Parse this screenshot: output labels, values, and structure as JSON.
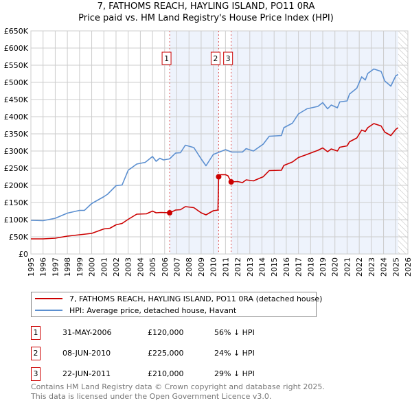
{
  "header": {
    "title_line1": "7, FATHOMS REACH, HAYLING ISLAND, PO11 0RA",
    "title_line2": "Price paid vs. HM Land Registry's House Price Index (HPI)"
  },
  "legend": {
    "property": "7, FATHOMS REACH, HAYLING ISLAND, PO11 0RA (detached house)",
    "hpi": "HPI: Average price, detached house, Havant"
  },
  "sales": [
    {
      "num": "1",
      "date": "31-MAY-2006",
      "price": "£120,000",
      "delta": "56% ↓ HPI",
      "year": 2006.41,
      "value": 120
    },
    {
      "num": "2",
      "date": "08-JUN-2010",
      "price": "£225,000",
      "delta": "24% ↓ HPI",
      "year": 2010.44,
      "value": 225
    },
    {
      "num": "3",
      "date": "22-JUN-2011",
      "price": "£210,000",
      "delta": "29% ↓ HPI",
      "year": 2011.47,
      "value": 210
    }
  ],
  "footer": {
    "line1": "Contains HM Land Registry data © Crown copyright and database right 2025.",
    "line2": "This data is licensed under the Open Government Licence v3.0."
  },
  "chart_data": {
    "type": "line",
    "title": "7, FATHOMS REACH, HAYLING ISLAND, PO11 0RA — Price paid vs. HM Land Registry's House Price Index (HPI)",
    "xlim": [
      1995,
      2026
    ],
    "ylim": [
      0,
      650
    ],
    "y_unit": "£K",
    "xticks": [
      "1995",
      "1996",
      "1997",
      "1998",
      "1999",
      "2000",
      "2001",
      "2002",
      "2003",
      "2004",
      "2005",
      "2006",
      "2007",
      "2008",
      "2009",
      "2010",
      "2011",
      "2012",
      "2013",
      "2014",
      "2015",
      "2016",
      "2017",
      "2018",
      "2019",
      "2020",
      "2021",
      "2022",
      "2023",
      "2024",
      "2025",
      "2026"
    ],
    "yticks": [
      "£0",
      "£50K",
      "£100K",
      "£150K",
      "£200K",
      "£250K",
      "£300K",
      "£350K",
      "£400K",
      "£450K",
      "£500K",
      "£550K",
      "£600K",
      "£650K"
    ],
    "grid": true,
    "colors": {
      "property": "#cc0000",
      "hpi": "#5b8fd0",
      "shade": "#eef3fc"
    },
    "series": [
      {
        "name": "7, FATHOMS REACH, HAYLING ISLAND, PO11 0RA (detached house)",
        "points": [
          [
            1995,
            44
          ],
          [
            1996,
            44
          ],
          [
            1997,
            46
          ],
          [
            1998,
            52
          ],
          [
            1999,
            56
          ],
          [
            2000,
            60
          ],
          [
            2001,
            73
          ],
          [
            2001.5,
            75
          ],
          [
            2002,
            85
          ],
          [
            2002.5,
            89
          ],
          [
            2003,
            101
          ],
          [
            2003.7,
            116
          ],
          [
            2004.5,
            117
          ],
          [
            2005,
            125
          ],
          [
            2005.3,
            120
          ],
          [
            2005.7,
            121
          ],
          [
            2006.41,
            120
          ],
          [
            2006.9,
            128
          ],
          [
            2007.3,
            129
          ],
          [
            2007.7,
            138
          ],
          [
            2008.4,
            135
          ],
          [
            2009,
            120
          ],
          [
            2009.4,
            114
          ],
          [
            2010,
            126
          ],
          [
            2010.38,
            128
          ],
          [
            2010.44,
            225
          ],
          [
            2010.6,
            231
          ],
          [
            2011,
            231
          ],
          [
            2011.2,
            228
          ],
          [
            2011.47,
            210
          ],
          [
            2012,
            211
          ],
          [
            2012.4,
            208
          ],
          [
            2012.7,
            216
          ],
          [
            2013.3,
            213
          ],
          [
            2014.1,
            225
          ],
          [
            2014.6,
            243
          ],
          [
            2015.6,
            244
          ],
          [
            2015.8,
            258
          ],
          [
            2016.5,
            268
          ],
          [
            2017,
            281
          ],
          [
            2017.7,
            290
          ],
          [
            2018.6,
            302
          ],
          [
            2019,
            309
          ],
          [
            2019.4,
            298
          ],
          [
            2019.7,
            306
          ],
          [
            2020.2,
            300
          ],
          [
            2020.4,
            311
          ],
          [
            2021,
            315
          ],
          [
            2021.2,
            327
          ],
          [
            2021.8,
            338
          ],
          [
            2022.2,
            361
          ],
          [
            2022.5,
            357
          ],
          [
            2022.7,
            368
          ],
          [
            2023.2,
            380
          ],
          [
            2023.8,
            373
          ],
          [
            2024.1,
            355
          ],
          [
            2024.6,
            345
          ],
          [
            2025,
            363
          ],
          [
            2025.2,
            368
          ]
        ]
      },
      {
        "name": "HPI: Average price, detached house, Havant",
        "points": [
          [
            1995,
            98
          ],
          [
            1996,
            97
          ],
          [
            1997,
            104
          ],
          [
            1998,
            119
          ],
          [
            1999,
            127
          ],
          [
            1999.4,
            127
          ],
          [
            2000,
            147
          ],
          [
            2001,
            167
          ],
          [
            2001.3,
            174
          ],
          [
            2002,
            199
          ],
          [
            2002.5,
            201
          ],
          [
            2003,
            244
          ],
          [
            2003.7,
            262
          ],
          [
            2004.4,
            267
          ],
          [
            2005,
            284
          ],
          [
            2005.3,
            270
          ],
          [
            2005.6,
            279
          ],
          [
            2005.9,
            274
          ],
          [
            2006.4,
            277
          ],
          [
            2006.9,
            294
          ],
          [
            2007.3,
            295
          ],
          [
            2007.7,
            317
          ],
          [
            2008.4,
            310
          ],
          [
            2009,
            277
          ],
          [
            2009.4,
            257
          ],
          [
            2010,
            290
          ],
          [
            2010.5,
            297
          ],
          [
            2011,
            304
          ],
          [
            2011.5,
            297
          ],
          [
            2012.4,
            297
          ],
          [
            2012.7,
            307
          ],
          [
            2013.3,
            300
          ],
          [
            2014.1,
            320
          ],
          [
            2014.6,
            343
          ],
          [
            2015.6,
            345
          ],
          [
            2015.8,
            368
          ],
          [
            2016.5,
            381
          ],
          [
            2017,
            408
          ],
          [
            2017.7,
            423
          ],
          [
            2018.6,
            430
          ],
          [
            2019,
            441
          ],
          [
            2019.4,
            423
          ],
          [
            2019.7,
            434
          ],
          [
            2020.2,
            426
          ],
          [
            2020.4,
            443
          ],
          [
            2021,
            446
          ],
          [
            2021.2,
            466
          ],
          [
            2021.8,
            483
          ],
          [
            2022.2,
            516
          ],
          [
            2022.5,
            507
          ],
          [
            2022.7,
            526
          ],
          [
            2023.2,
            539
          ],
          [
            2023.8,
            532
          ],
          [
            2024.1,
            504
          ],
          [
            2024.6,
            489
          ],
          [
            2025,
            519
          ],
          [
            2025.2,
            523
          ]
        ]
      }
    ]
  }
}
